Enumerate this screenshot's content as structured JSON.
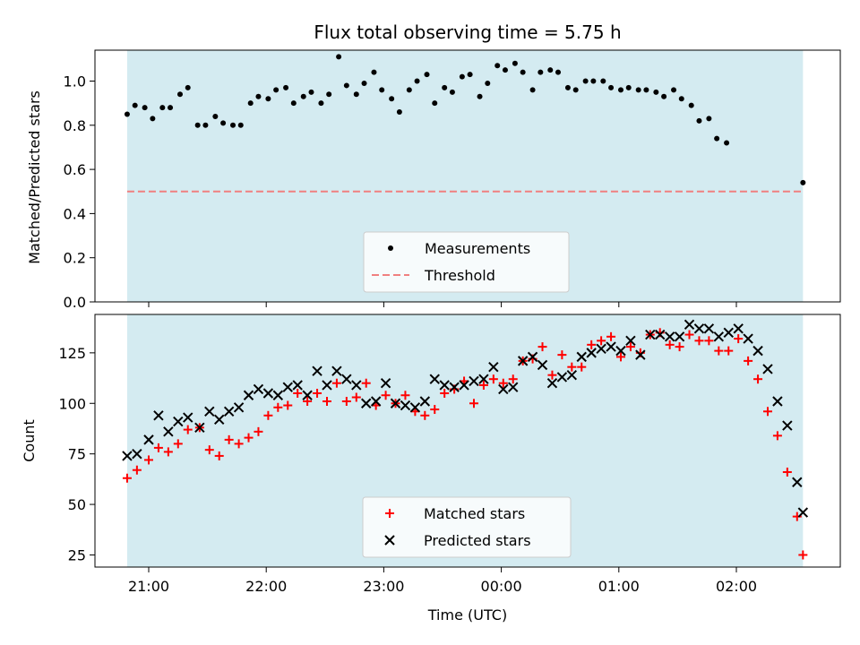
{
  "chart_data": [
    {
      "type": "scatter",
      "title": "Flux total observing time = 5.75 h",
      "xlabel": "",
      "ylabel": "Matched/Predicted stars",
      "ylim": [
        0,
        1.14
      ],
      "yticks": [
        0.0,
        0.2,
        0.4,
        0.6,
        0.8,
        1.0
      ],
      "ytick_labels": [
        "0.0",
        "0.2",
        "0.4",
        "0.6",
        "0.8",
        "1.0"
      ],
      "observing_window": [
        "20:49",
        "02:34"
      ],
      "threshold": 0.5,
      "legend": {
        "placement": "lower-center",
        "entries": [
          "Measurements",
          "Threshold"
        ]
      },
      "colors": {
        "window": "#d4ebf1",
        "measurements": "#000000",
        "threshold": "#f08080"
      },
      "series": [
        {
          "name": "Measurements",
          "points": [
            [
              "20:49",
              0.85
            ],
            [
              "20:53",
              0.89
            ],
            [
              "20:58",
              0.88
            ],
            [
              "21:02",
              0.83
            ],
            [
              "21:07",
              0.88
            ],
            [
              "21:11",
              0.88
            ],
            [
              "21:16",
              0.94
            ],
            [
              "21:20",
              0.97
            ],
            [
              "21:25",
              0.8
            ],
            [
              "21:29",
              0.8
            ],
            [
              "21:34",
              0.84
            ],
            [
              "21:38",
              0.81
            ],
            [
              "21:43",
              0.8
            ],
            [
              "21:47",
              0.8
            ],
            [
              "21:52",
              0.9
            ],
            [
              "21:56",
              0.93
            ],
            [
              "22:01",
              0.92
            ],
            [
              "22:05",
              0.96
            ],
            [
              "22:10",
              0.97
            ],
            [
              "22:14",
              0.9
            ],
            [
              "22:19",
              0.93
            ],
            [
              "22:23",
              0.95
            ],
            [
              "22:28",
              0.9
            ],
            [
              "22:32",
              0.94
            ],
            [
              "22:37",
              1.11
            ],
            [
              "22:41",
              0.98
            ],
            [
              "22:46",
              0.94
            ],
            [
              "22:50",
              0.99
            ],
            [
              "22:55",
              1.04
            ],
            [
              "22:59",
              0.96
            ],
            [
              "23:04",
              0.92
            ],
            [
              "23:08",
              0.86
            ],
            [
              "23:13",
              0.96
            ],
            [
              "23:17",
              1.0
            ],
            [
              "23:22",
              1.03
            ],
            [
              "23:26",
              0.9
            ],
            [
              "23:31",
              0.97
            ],
            [
              "23:35",
              0.95
            ],
            [
              "23:40",
              1.02
            ],
            [
              "23:44",
              1.03
            ],
            [
              "23:49",
              0.93
            ],
            [
              "23:53",
              0.99
            ],
            [
              "23:58",
              1.07
            ],
            [
              "00:02",
              1.05
            ],
            [
              "00:07",
              1.08
            ],
            [
              "00:11",
              1.04
            ],
            [
              "00:16",
              0.96
            ],
            [
              "00:20",
              1.04
            ],
            [
              "00:25",
              1.05
            ],
            [
              "00:29",
              1.04
            ],
            [
              "00:34",
              0.97
            ],
            [
              "00:38",
              0.96
            ],
            [
              "00:43",
              1.0
            ],
            [
              "00:47",
              1.0
            ],
            [
              "00:52",
              1.0
            ],
            [
              "00:56",
              0.97
            ],
            [
              "01:01",
              0.96
            ],
            [
              "01:05",
              0.97
            ],
            [
              "01:10",
              0.96
            ],
            [
              "01:14",
              0.96
            ],
            [
              "01:19",
              0.95
            ],
            [
              "01:23",
              0.93
            ],
            [
              "01:28",
              0.96
            ],
            [
              "01:32",
              0.92
            ],
            [
              "01:37",
              0.89
            ],
            [
              "01:41",
              0.82
            ],
            [
              "01:46",
              0.83
            ],
            [
              "01:50",
              0.74
            ],
            [
              "01:55",
              0.72
            ],
            [
              "02:34",
              0.54
            ]
          ]
        },
        {
          "name": "Threshold",
          "y": 0.5
        }
      ]
    },
    {
      "type": "scatter",
      "title": "",
      "xlabel": "Time (UTC)",
      "ylabel": "Count",
      "ylim": [
        19,
        144
      ],
      "yticks": [
        25,
        50,
        75,
        100,
        125
      ],
      "ytick_labels": [
        "25",
        "50",
        "75",
        "100",
        "125"
      ],
      "xticks": [
        "21:00",
        "22:00",
        "23:00",
        "00:00",
        "01:00",
        "02:00"
      ],
      "observing_window": [
        "20:49",
        "02:34"
      ],
      "legend": {
        "placement": "lower-center",
        "entries": [
          "Matched stars",
          "Predicted stars"
        ]
      },
      "colors": {
        "window": "#d4ebf1",
        "matched": "#ff0000",
        "predicted": "#000000"
      },
      "series": [
        {
          "name": "Matched stars",
          "marker": "plus",
          "points": [
            [
              "20:49",
              63
            ],
            [
              "20:54",
              67
            ],
            [
              "21:00",
              72
            ],
            [
              "21:05",
              78
            ],
            [
              "21:10",
              76
            ],
            [
              "21:15",
              80
            ],
            [
              "21:20",
              87
            ],
            [
              "21:26",
              88
            ],
            [
              "21:31",
              77
            ],
            [
              "21:36",
              74
            ],
            [
              "21:41",
              82
            ],
            [
              "21:46",
              80
            ],
            [
              "21:51",
              83
            ],
            [
              "21:56",
              86
            ],
            [
              "22:01",
              94
            ],
            [
              "22:06",
              98
            ],
            [
              "22:11",
              99
            ],
            [
              "22:16",
              105
            ],
            [
              "22:21",
              101
            ],
            [
              "22:26",
              105
            ],
            [
              "22:31",
              101
            ],
            [
              "22:36",
              110
            ],
            [
              "22:41",
              101
            ],
            [
              "22:46",
              103
            ],
            [
              "22:51",
              110
            ],
            [
              "22:56",
              99
            ],
            [
              "23:01",
              104
            ],
            [
              "23:06",
              100
            ],
            [
              "23:11",
              104
            ],
            [
              "23:16",
              96
            ],
            [
              "23:21",
              94
            ],
            [
              "23:26",
              97
            ],
            [
              "23:31",
              105
            ],
            [
              "23:36",
              107
            ],
            [
              "23:41",
              111
            ],
            [
              "23:46",
              100
            ],
            [
              "23:51",
              109
            ],
            [
              "23:56",
              112
            ],
            [
              "00:01",
              110
            ],
            [
              "00:06",
              112
            ],
            [
              "00:11",
              121
            ],
            [
              "00:16",
              122
            ],
            [
              "00:21",
              128
            ],
            [
              "00:26",
              114
            ],
            [
              "00:31",
              124
            ],
            [
              "00:36",
              118
            ],
            [
              "00:41",
              118
            ],
            [
              "00:46",
              129
            ],
            [
              "00:51",
              131
            ],
            [
              "00:56",
              133
            ],
            [
              "01:01",
              123
            ],
            [
              "01:06",
              128
            ],
            [
              "01:11",
              125
            ],
            [
              "01:16",
              134
            ],
            [
              "01:21",
              135
            ],
            [
              "01:26",
              129
            ],
            [
              "01:31",
              128
            ],
            [
              "01:36",
              134
            ],
            [
              "01:41",
              131
            ],
            [
              "01:46",
              131
            ],
            [
              "01:51",
              126
            ],
            [
              "01:56",
              126
            ],
            [
              "02:01",
              132
            ],
            [
              "02:06",
              121
            ],
            [
              "02:11",
              112
            ],
            [
              "02:16",
              96
            ],
            [
              "02:21",
              84
            ],
            [
              "02:26",
              66
            ],
            [
              "02:31",
              44
            ],
            [
              "02:34",
              25
            ]
          ]
        },
        {
          "name": "Predicted stars",
          "marker": "x",
          "points": [
            [
              "20:49",
              74
            ],
            [
              "20:54",
              75
            ],
            [
              "21:00",
              82
            ],
            [
              "21:05",
              94
            ],
            [
              "21:10",
              86
            ],
            [
              "21:15",
              91
            ],
            [
              "21:20",
              93
            ],
            [
              "21:26",
              88
            ],
            [
              "21:31",
              96
            ],
            [
              "21:36",
              92
            ],
            [
              "21:41",
              96
            ],
            [
              "21:46",
              98
            ],
            [
              "21:51",
              104
            ],
            [
              "21:56",
              107
            ],
            [
              "22:01",
              105
            ],
            [
              "22:06",
              104
            ],
            [
              "22:11",
              108
            ],
            [
              "22:16",
              109
            ],
            [
              "22:21",
              104
            ],
            [
              "22:26",
              116
            ],
            [
              "22:31",
              109
            ],
            [
              "22:36",
              116
            ],
            [
              "22:41",
              112
            ],
            [
              "22:46",
              109
            ],
            [
              "22:51",
              100
            ],
            [
              "22:56",
              101
            ],
            [
              "23:01",
              110
            ],
            [
              "23:06",
              100
            ],
            [
              "23:11",
              99
            ],
            [
              "23:16",
              98
            ],
            [
              "23:21",
              101
            ],
            [
              "23:26",
              112
            ],
            [
              "23:31",
              109
            ],
            [
              "23:36",
              108
            ],
            [
              "23:41",
              109
            ],
            [
              "23:46",
              111
            ],
            [
              "23:51",
              112
            ],
            [
              "23:56",
              118
            ],
            [
              "00:01",
              107
            ],
            [
              "00:06",
              108
            ],
            [
              "00:11",
              121
            ],
            [
              "00:16",
              123
            ],
            [
              "00:21",
              119
            ],
            [
              "00:26",
              110
            ],
            [
              "00:31",
              113
            ],
            [
              "00:36",
              114
            ],
            [
              "00:41",
              123
            ],
            [
              "00:46",
              125
            ],
            [
              "00:51",
              127
            ],
            [
              "00:56",
              128
            ],
            [
              "01:01",
              126
            ],
            [
              "01:06",
              131
            ],
            [
              "01:11",
              124
            ],
            [
              "01:16",
              134
            ],
            [
              "01:21",
              134
            ],
            [
              "01:26",
              133
            ],
            [
              "01:31",
              133
            ],
            [
              "01:36",
              139
            ],
            [
              "01:41",
              137
            ],
            [
              "01:46",
              137
            ],
            [
              "01:51",
              133
            ],
            [
              "01:56",
              135
            ],
            [
              "02:01",
              137
            ],
            [
              "02:06",
              132
            ],
            [
              "02:11",
              126
            ],
            [
              "02:16",
              117
            ],
            [
              "02:21",
              101
            ],
            [
              "02:26",
              89
            ],
            [
              "02:31",
              61
            ],
            [
              "02:34",
              46
            ]
          ]
        }
      ]
    }
  ]
}
